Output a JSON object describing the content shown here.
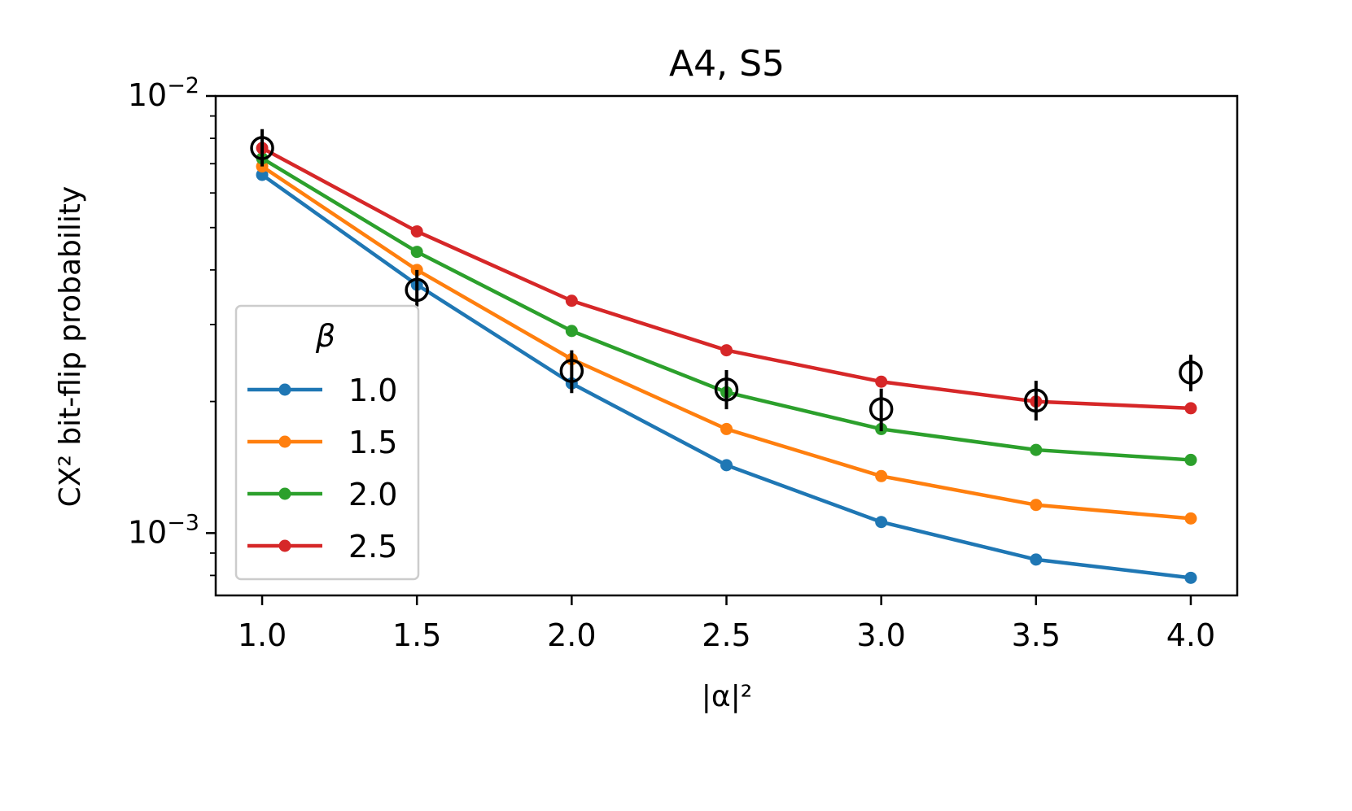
{
  "chart_data": {
    "type": "line",
    "title": "A4, S5",
    "xlabel": "|α|²",
    "ylabel": "CX² bit-flip probability",
    "yscale": "log",
    "xlim": [
      0.85,
      4.15
    ],
    "ylim": [
      0.00072,
      0.01
    ],
    "x": [
      1.0,
      1.5,
      2.0,
      2.5,
      3.0,
      3.5,
      4.0
    ],
    "x_tick_labels": [
      "1.0",
      "1.5",
      "2.0",
      "2.5",
      "3.0",
      "3.5",
      "4.0"
    ],
    "y_tick_labels": [
      {
        "value": 0.01,
        "base": "10",
        "exp": "−2"
      },
      {
        "value": 0.001,
        "base": "10",
        "exp": "−3"
      }
    ],
    "legend": {
      "title": "β",
      "placement": "center-left"
    },
    "series": [
      {
        "name": "1.0",
        "color": "#1f77b4",
        "values": [
          0.0066,
          0.0037,
          0.0022,
          0.00143,
          0.00106,
          0.00087,
          0.00079
        ]
      },
      {
        "name": "1.5",
        "color": "#ff7f0e",
        "values": [
          0.0069,
          0.004,
          0.0025,
          0.00173,
          0.00135,
          0.00116,
          0.00108
        ]
      },
      {
        "name": "2.0",
        "color": "#2ca02c",
        "values": [
          0.0072,
          0.0044,
          0.0029,
          0.0021,
          0.00173,
          0.00155,
          0.00147
        ]
      },
      {
        "name": "2.5",
        "color": "#d62728",
        "values": [
          0.0076,
          0.0049,
          0.0034,
          0.00262,
          0.00222,
          0.002,
          0.00193
        ]
      }
    ],
    "measured": {
      "marker": "open-circle",
      "color": "#000000",
      "values": [
        0.0076,
        0.0036,
        0.00235,
        0.00213,
        0.00192,
        0.00201,
        0.00233
      ],
      "err_low": [
        0.0069,
        0.0033,
        0.00209,
        0.00192,
        0.00171,
        0.00181,
        0.00211
      ],
      "err_high": [
        0.0084,
        0.004,
        0.00262,
        0.00236,
        0.00214,
        0.00223,
        0.00256
      ]
    }
  }
}
